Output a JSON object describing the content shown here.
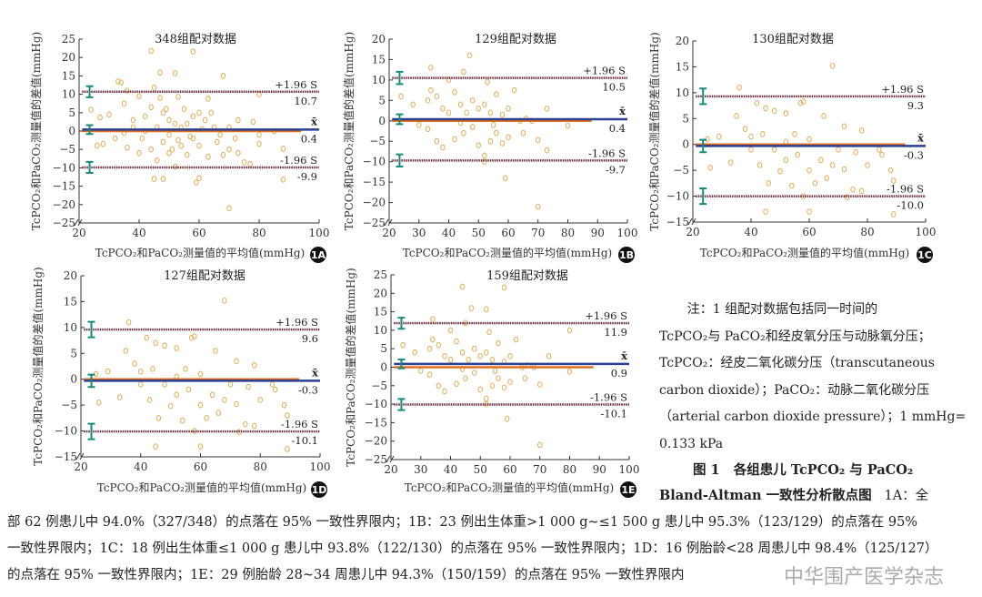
{
  "notes": {
    "line1": "注：1 组配对数据包括同一时间的",
    "line2": "TcPCO₂与 PaCO₂和经皮氧分压与动脉氧分压；",
    "line3": "TcPCO₂：经皮二氧化碳分压（transcutaneous",
    "line4": "carbon dioxide）；PaCO₂：动脉二氧化碳分压",
    "line5": "（arterial carbon dioxide pressure）；1 mmHg=",
    "line6": "0.133 kPa"
  },
  "caption": {
    "figure_label": "图 1",
    "title_line1": "各组患儿 TcPCO₂ 与 PaCO₂",
    "title_line2": "Bland-Altman 一致性分析散点图",
    "line_a_start": "1A：全",
    "line2": "部 62 例患儿中 94.0%（327/348）的点落在 95% 一致性界限内；1B：23 例出生体重>1 000 g~≤1 500 g 患儿中 95.3%（123/129）的点落在 95%",
    "line3": "一致性界限内；1C：18 例出生体重≤1 000 g 患儿中 93.8%（122/130）的点落在 95% 一致性界限内；1D：16 例胎龄<28 周患儿中 98.4%（125/127）",
    "line4": "的点落在 95% 一致性界限内；1E：29 例胎龄 28~34 周患儿中 94.3%（150/159）的点落在 95% 一致性界限内"
  },
  "watermark": "中华围产医学杂志",
  "colors": {
    "points": "#e0b060",
    "mean_line": "#2a3f8f",
    "zero_line": "#e07020",
    "limit_line": "#6a2a3a",
    "error_bar": "#1a8a78"
  },
  "chart_data": [
    {
      "type": "scatter",
      "panel": "1A",
      "title": "348组配对数据",
      "xlabel": "TcPCO₂和PaCO₂测量值的平均值(mmHg)",
      "ylabel": "TcPCO₂和PaCO₂测量值的差值(mmHg)",
      "xlim": [
        20,
        100
      ],
      "ylim": [
        -25,
        25
      ],
      "xticks": [
        20,
        40,
        60,
        80,
        100
      ],
      "yticks": [
        25,
        20,
        15,
        10,
        5,
        0,
        -5,
        -10,
        -15,
        -20,
        -25
      ],
      "upper_label": "+1.96 S",
      "upper": 10.7,
      "mean_label": "x̄",
      "mean": 0.4,
      "lower_label": "-1.96 S",
      "lower": -9.9,
      "zero_line_end": 94,
      "points": [
        [
          44,
          21.8
        ],
        [
          58,
          21.6
        ],
        [
          47,
          15.9
        ],
        [
          52,
          15.7
        ],
        [
          68,
          15
        ],
        [
          33,
          13.5
        ],
        [
          34,
          13.2
        ],
        [
          45,
          11.8
        ],
        [
          36,
          11
        ],
        [
          80,
          10
        ],
        [
          40,
          9.5
        ],
        [
          47,
          9
        ],
        [
          53,
          9.3
        ],
        [
          63,
          8.8
        ],
        [
          24,
          5.8
        ],
        [
          27,
          3.7
        ],
        [
          30,
          4.5
        ],
        [
          35,
          7.5
        ],
        [
          38,
          3
        ],
        [
          42,
          4
        ],
        [
          44,
          6.5
        ],
        [
          48,
          5
        ],
        [
          50,
          3
        ],
        [
          52,
          2
        ],
        [
          55,
          6
        ],
        [
          58,
          4
        ],
        [
          60,
          5
        ],
        [
          62,
          3
        ],
        [
          65,
          1
        ],
        [
          70,
          1
        ],
        [
          73,
          3
        ],
        [
          78,
          2.5
        ],
        [
          80,
          -1
        ],
        [
          26,
          -4
        ],
        [
          28,
          -3.5
        ],
        [
          32,
          -2
        ],
        [
          36,
          -4.5
        ],
        [
          40,
          -6
        ],
        [
          44,
          -5
        ],
        [
          46,
          -8
        ],
        [
          50,
          -6
        ],
        [
          52,
          -9.7
        ],
        [
          54,
          -4
        ],
        [
          56,
          -6.5
        ],
        [
          58,
          -2
        ],
        [
          60,
          -4
        ],
        [
          63,
          -7
        ],
        [
          66,
          -3
        ],
        [
          70,
          -5
        ],
        [
          73,
          -6
        ],
        [
          75,
          -8.5
        ],
        [
          77,
          -9
        ],
        [
          80,
          -3.5
        ],
        [
          88,
          -4.8
        ],
        [
          88,
          -13.2
        ],
        [
          45,
          -13
        ],
        [
          48,
          -13
        ],
        [
          59,
          -14
        ],
        [
          60,
          -12.8
        ],
        [
          70,
          -21
        ],
        [
          42,
          0
        ],
        [
          46,
          1
        ],
        [
          50,
          -1
        ],
        [
          54,
          1
        ],
        [
          57,
          -1.5
        ],
        [
          61,
          0.5
        ],
        [
          67,
          -1
        ],
        [
          72,
          -2
        ],
        [
          85,
          0
        ],
        [
          38,
          1
        ],
        [
          48,
          -3
        ],
        [
          53,
          -2.5
        ],
        [
          56,
          2
        ],
        [
          64,
          5
        ],
        [
          68,
          -6.5
        ],
        [
          35,
          -0.5
        ],
        [
          41,
          -2
        ],
        [
          49,
          6
        ],
        [
          51,
          -5
        ]
      ]
    },
    {
      "type": "scatter",
      "panel": "1B",
      "title": "129组配对数据",
      "xlabel": "TcPCO₂和PaCO₂测量值的平均值(mmHg)",
      "ylabel": "TcPCO₂和PaCO₂测量值的差值(mmHg)",
      "xlim": [
        20,
        100
      ],
      "ylim": [
        -25,
        20
      ],
      "xticks": [
        20,
        30,
        40,
        50,
        60,
        70,
        80,
        90,
        100
      ],
      "yticks": [
        20,
        15,
        10,
        5,
        0,
        -5,
        -10,
        -15,
        -20,
        -25
      ],
      "upper_label": "+1.96 S",
      "upper": 10.5,
      "mean_label": "x̄",
      "mean": 0.4,
      "lower_label": "-1.96 S",
      "lower": -9.7,
      "zero_line_end": 88,
      "points": [
        [
          47,
          16
        ],
        [
          34,
          13
        ],
        [
          45,
          12
        ],
        [
          40,
          10
        ],
        [
          53,
          9.5
        ],
        [
          24,
          6
        ],
        [
          28,
          4
        ],
        [
          33,
          5
        ],
        [
          34,
          7.5
        ],
        [
          36,
          6
        ],
        [
          38,
          3
        ],
        [
          40,
          2
        ],
        [
          42,
          7
        ],
        [
          44,
          4
        ],
        [
          46,
          2
        ],
        [
          48,
          5
        ],
        [
          50,
          3
        ],
        [
          52,
          4
        ],
        [
          54,
          2
        ],
        [
          56,
          6.5
        ],
        [
          58,
          1.5
        ],
        [
          60,
          3
        ],
        [
          62,
          7.5
        ],
        [
          64,
          0
        ],
        [
          68,
          0
        ],
        [
          73,
          3
        ],
        [
          80,
          -1.2
        ],
        [
          30,
          -1
        ],
        [
          33,
          -2
        ],
        [
          36,
          -5
        ],
        [
          38,
          -6.5
        ],
        [
          42,
          -4.5
        ],
        [
          45,
          -3
        ],
        [
          48,
          -1.5
        ],
        [
          50,
          -6
        ],
        [
          52,
          -10
        ],
        [
          54,
          -5
        ],
        [
          56,
          -3
        ],
        [
          58,
          -5.5
        ],
        [
          60,
          -4
        ],
        [
          65,
          -3
        ],
        [
          70,
          -4.7
        ],
        [
          73,
          -7.2
        ],
        [
          59,
          -14
        ],
        [
          70,
          -21
        ],
        [
          44,
          -0.5
        ],
        [
          55,
          -1
        ],
        [
          66,
          0.5
        ],
        [
          52,
          -8.5
        ]
      ]
    },
    {
      "type": "scatter",
      "panel": "1C",
      "title": "130组配对数据",
      "xlabel": "TcPCO₂和PaCO₂测量值的平均值(mmHg)",
      "ylabel": "TcPCO₂和PaCO₂测量值的差值(mmHg)",
      "xlim": [
        20,
        100
      ],
      "ylim": [
        -15,
        20
      ],
      "xticks": [
        20,
        40,
        60,
        80,
        100
      ],
      "yticks": [
        20,
        15,
        10,
        5,
        0,
        -5,
        -10,
        -15
      ],
      "upper_label": "+1.96 S",
      "upper": 9.3,
      "mean_label": "x̄",
      "mean": -0.3,
      "lower_label": "-1.96 S",
      "lower": -10.0,
      "zero_line_end": 93,
      "points": [
        [
          68,
          15.2
        ],
        [
          36,
          11
        ],
        [
          42,
          8
        ],
        [
          45,
          7
        ],
        [
          48,
          6.5
        ],
        [
          52,
          6
        ],
        [
          57,
          8
        ],
        [
          58,
          8.3
        ],
        [
          65,
          5.5
        ],
        [
          72,
          3.5
        ],
        [
          78,
          2.7
        ],
        [
          35,
          5.5
        ],
        [
          38,
          3
        ],
        [
          40,
          1.5
        ],
        [
          25,
          1
        ],
        [
          29,
          1.5
        ],
        [
          33,
          -3.5
        ],
        [
          26,
          -4.5
        ],
        [
          43,
          -4
        ],
        [
          46,
          -7.5
        ],
        [
          50,
          -5.2
        ],
        [
          52,
          -3
        ],
        [
          54,
          -8
        ],
        [
          56,
          -2
        ],
        [
          58,
          -10
        ],
        [
          60,
          -5
        ],
        [
          62,
          -7.5
        ],
        [
          64,
          -3
        ],
        [
          66,
          -6.5
        ],
        [
          68,
          -4
        ],
        [
          72,
          -4.8
        ],
        [
          75,
          -8.7
        ],
        [
          78,
          -9
        ],
        [
          80,
          -4
        ],
        [
          84,
          -1
        ],
        [
          88,
          -5
        ],
        [
          89,
          -7
        ],
        [
          89,
          -13.5
        ],
        [
          45,
          -13
        ],
        [
          60,
          -13
        ],
        [
          48,
          -1
        ],
        [
          52,
          0.5
        ],
        [
          55,
          2
        ],
        [
          60,
          1
        ],
        [
          70,
          -1
        ],
        [
          76,
          -1.5
        ],
        [
          85,
          -2
        ],
        [
          73,
          -10.2
        ],
        [
          40,
          -1
        ],
        [
          44,
          2
        ]
      ]
    },
    {
      "type": "scatter",
      "panel": "1D",
      "title": "127组配对数据",
      "xlabel": "TcPCO₂和PaCO₂测量值的平均值(mmHg)",
      "ylabel": "TcPCO₂和PaCO₂测量值的差值(mmHg)",
      "xlim": [
        20,
        100
      ],
      "ylim": [
        -15,
        20
      ],
      "xticks": [
        20,
        40,
        60,
        80,
        100
      ],
      "yticks": [
        20,
        15,
        10,
        5,
        0,
        -5,
        -10,
        -15
      ],
      "upper_label": "+1.96 S",
      "upper": 9.6,
      "mean_label": "x̄",
      "mean": -0.3,
      "lower_label": "-1.96 S",
      "lower": -10.1,
      "zero_line_end": 93,
      "points": [
        [
          68,
          15.2
        ],
        [
          36,
          11
        ],
        [
          42,
          8
        ],
        [
          45,
          7
        ],
        [
          48,
          6.5
        ],
        [
          52,
          6
        ],
        [
          57,
          8
        ],
        [
          58,
          8.3
        ],
        [
          65,
          5.5
        ],
        [
          72,
          3.5
        ],
        [
          78,
          2.7
        ],
        [
          35,
          5.5
        ],
        [
          38,
          3
        ],
        [
          40,
          1.5
        ],
        [
          25,
          1
        ],
        [
          29,
          1.5
        ],
        [
          33,
          -3.5
        ],
        [
          26,
          -4.5
        ],
        [
          43,
          -4
        ],
        [
          46,
          -7.5
        ],
        [
          50,
          -5.2
        ],
        [
          52,
          -3
        ],
        [
          54,
          -8
        ],
        [
          56,
          -2
        ],
        [
          58,
          -10
        ],
        [
          60,
          -5
        ],
        [
          62,
          -7.5
        ],
        [
          64,
          -3
        ],
        [
          66,
          -6.5
        ],
        [
          68,
          -4
        ],
        [
          72,
          -4.8
        ],
        [
          75,
          -8.7
        ],
        [
          78,
          -9
        ],
        [
          80,
          -4
        ],
        [
          84,
          -1
        ],
        [
          88,
          -5
        ],
        [
          89,
          -7
        ],
        [
          89,
          -13.5
        ],
        [
          45,
          -13
        ],
        [
          60,
          -13
        ],
        [
          48,
          -1
        ],
        [
          52,
          0.5
        ],
        [
          55,
          2
        ],
        [
          60,
          1
        ],
        [
          70,
          -1
        ],
        [
          76,
          -1.5
        ],
        [
          85,
          -2
        ],
        [
          73,
          -10.2
        ],
        [
          40,
          -1
        ],
        [
          44,
          2
        ]
      ]
    },
    {
      "type": "scatter",
      "panel": "1E",
      "title": "159组配对数据",
      "xlabel": "TcPCO₂和PaCO₂测量值的平均值(mmHg)",
      "ylabel": "TcPCO₂和PaCO₂测量值的差值(mmHg)",
      "xlim": [
        20,
        100
      ],
      "ylim": [
        -25,
        25
      ],
      "xticks": [
        20,
        30,
        40,
        50,
        60,
        70,
        80,
        90,
        100
      ],
      "yticks": [
        25,
        20,
        15,
        10,
        5,
        0,
        -5,
        -10,
        -15,
        -20,
        -25
      ],
      "upper_label": "+1.96 S",
      "upper": 11.9,
      "mean_label": "x̄",
      "mean": 0.9,
      "lower_label": "-1.96 S",
      "lower": -10.1,
      "zero_line_end": 88,
      "points": [
        [
          44,
          21.8
        ],
        [
          58,
          21.6
        ],
        [
          47,
          16
        ],
        [
          52,
          15.7
        ],
        [
          80,
          10
        ],
        [
          34,
          13
        ],
        [
          45,
          12
        ],
        [
          40,
          10
        ],
        [
          53,
          9.5
        ],
        [
          24,
          6
        ],
        [
          28,
          4
        ],
        [
          33,
          5
        ],
        [
          34,
          7.5
        ],
        [
          36,
          6
        ],
        [
          38,
          3
        ],
        [
          40,
          2
        ],
        [
          42,
          7
        ],
        [
          44,
          4
        ],
        [
          46,
          2
        ],
        [
          48,
          5
        ],
        [
          50,
          3
        ],
        [
          52,
          4
        ],
        [
          54,
          2
        ],
        [
          56,
          6.5
        ],
        [
          58,
          1.5
        ],
        [
          60,
          3
        ],
        [
          62,
          7.5
        ],
        [
          64,
          0
        ],
        [
          68,
          0
        ],
        [
          73,
          3
        ],
        [
          80,
          -1.2
        ],
        [
          30,
          -1
        ],
        [
          33,
          -2
        ],
        [
          36,
          -5
        ],
        [
          38,
          -6.5
        ],
        [
          42,
          -4.5
        ],
        [
          45,
          -3
        ],
        [
          48,
          -1.5
        ],
        [
          50,
          -6
        ],
        [
          52,
          -10
        ],
        [
          54,
          -5
        ],
        [
          56,
          -3
        ],
        [
          58,
          -5.5
        ],
        [
          60,
          -4
        ],
        [
          65,
          -3
        ],
        [
          70,
          -4.7
        ],
        [
          59,
          -14
        ],
        [
          70,
          -21
        ],
        [
          44,
          -0.5
        ],
        [
          55,
          -1
        ],
        [
          66,
          0.5
        ],
        [
          52,
          -8.5
        ]
      ]
    }
  ]
}
